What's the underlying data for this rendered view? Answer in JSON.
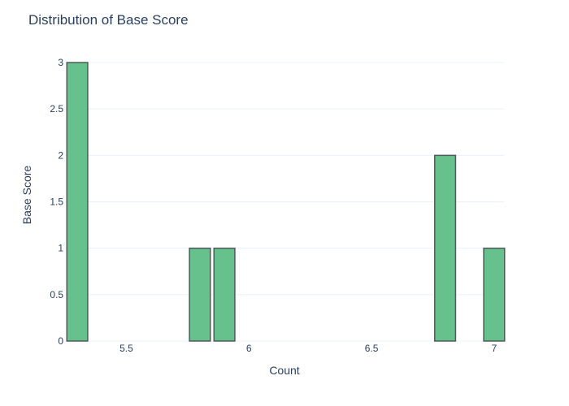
{
  "chart_data": {
    "type": "bar",
    "title": "Distribution of Base Score",
    "xlabel": "Count",
    "ylabel": "Base Score",
    "xlim": [
      5.25,
      7.04
    ],
    "ylim": [
      0,
      3
    ],
    "x_ticks": [
      5.5,
      6,
      6.5,
      7
    ],
    "x_tick_labels": [
      "5.5",
      "6",
      "6.5",
      "7"
    ],
    "y_ticks": [
      0,
      0.5,
      1,
      1.5,
      2,
      2.5,
      3
    ],
    "y_tick_labels": [
      "0",
      "0.5",
      "1",
      "1.5",
      "2",
      "2.5",
      "3"
    ],
    "bin_width": 0.1,
    "bars": [
      {
        "x0": 5.25,
        "x1": 5.35,
        "value": 3
      },
      {
        "x0": 5.75,
        "x1": 5.85,
        "value": 1
      },
      {
        "x0": 5.85,
        "x1": 5.95,
        "value": 1
      },
      {
        "x0": 6.75,
        "x1": 6.85,
        "value": 2
      },
      {
        "x0": 6.95,
        "x1": 7.05,
        "value": 1
      }
    ],
    "grid": true,
    "bar_color": "#66c18c",
    "bar_outline_color": "#4f5b5a"
  }
}
